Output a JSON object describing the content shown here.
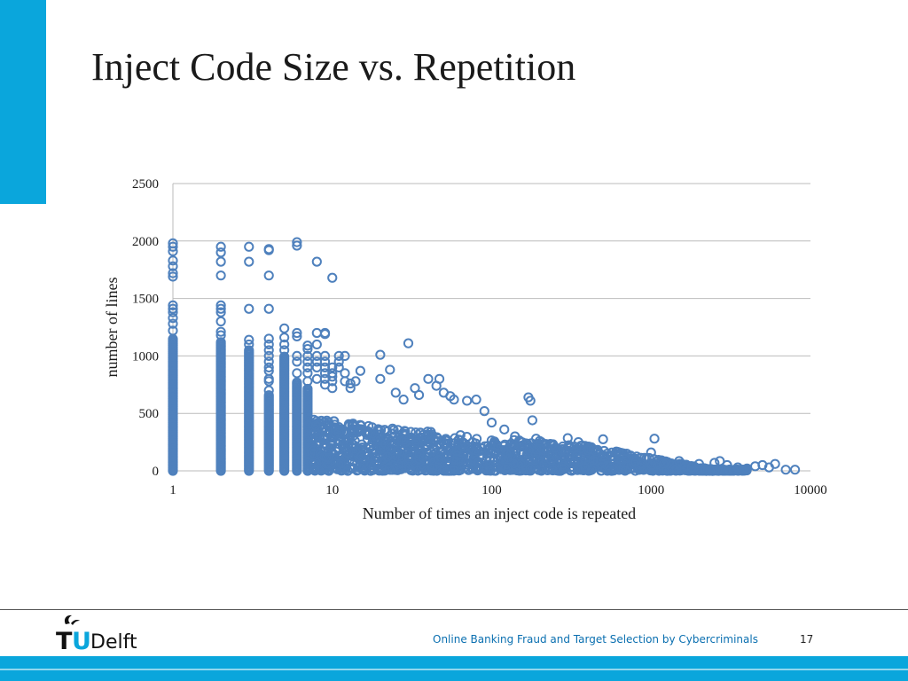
{
  "slide": {
    "title": "Inject Code Size vs. Repetition",
    "page_number": "17",
    "footer_caption": "Online Banking Fraud and Target Selection by Cybercriminals",
    "logo_tu": "TU",
    "logo_delft": "Delft"
  },
  "colors": {
    "accent": "#0aa6dc",
    "marker": "#4f81bd",
    "caption": "#0a6fb0",
    "grid": "#bbbbbb"
  },
  "chart_data": {
    "type": "scatter",
    "xlabel": "Number of times an inject code is repeated",
    "ylabel": "number of lines",
    "xscale": "log",
    "xlim": [
      1,
      10000
    ],
    "ylim": [
      0,
      2500
    ],
    "xticks": [
      1,
      10,
      100,
      1000,
      10000
    ],
    "yticks": [
      0,
      500,
      1000,
      1500,
      2000,
      2500
    ],
    "grid": "horizontal",
    "legend": "none",
    "columns": [
      {
        "x": 1,
        "ymax": 1150
      },
      {
        "x": 2,
        "ymax": 1120
      },
      {
        "x": 3,
        "ymax": 1060
      },
      {
        "x": 4,
        "ymax": 660
      },
      {
        "x": 5,
        "ymax": 1000
      },
      {
        "x": 6,
        "ymax": 780
      },
      {
        "x": 7,
        "ymax": 720
      }
    ],
    "points": [
      [
        1,
        1980
      ],
      [
        1,
        1950
      ],
      [
        1,
        1910
      ],
      [
        1,
        1830
      ],
      [
        1,
        1780
      ],
      [
        1,
        1720
      ],
      [
        1,
        1690
      ],
      [
        1,
        1440
      ],
      [
        1,
        1410
      ],
      [
        1,
        1380
      ],
      [
        1,
        1330
      ],
      [
        1,
        1280
      ],
      [
        1,
        1220
      ],
      [
        2,
        1950
      ],
      [
        2,
        1900
      ],
      [
        2,
        1820
      ],
      [
        2,
        1700
      ],
      [
        2,
        1440
      ],
      [
        2,
        1410
      ],
      [
        2,
        1380
      ],
      [
        2,
        1300
      ],
      [
        2,
        1210
      ],
      [
        2,
        1180
      ],
      [
        3,
        1950
      ],
      [
        3,
        1820
      ],
      [
        3,
        1410
      ],
      [
        3,
        1140
      ],
      [
        3,
        1100
      ],
      [
        4,
        1930
      ],
      [
        4,
        1920
      ],
      [
        4,
        1700
      ],
      [
        4,
        1410
      ],
      [
        4,
        1150
      ],
      [
        4,
        1100
      ],
      [
        4,
        1050
      ],
      [
        4,
        1000
      ],
      [
        4,
        950
      ],
      [
        4,
        900
      ],
      [
        4,
        870
      ],
      [
        4,
        800
      ],
      [
        4,
        780
      ],
      [
        4,
        700
      ],
      [
        5,
        1240
      ],
      [
        5,
        1160
      ],
      [
        5,
        1100
      ],
      [
        5,
        1050
      ],
      [
        6,
        1990
      ],
      [
        6,
        1960
      ],
      [
        6,
        1200
      ],
      [
        6,
        1170
      ],
      [
        6,
        1000
      ],
      [
        6,
        950
      ],
      [
        6,
        850
      ],
      [
        7,
        1090
      ],
      [
        7,
        1060
      ],
      [
        7,
        1000
      ],
      [
        7,
        950
      ],
      [
        7,
        900
      ],
      [
        7,
        850
      ],
      [
        7,
        780
      ],
      [
        8,
        1820
      ],
      [
        8,
        1200
      ],
      [
        8,
        1100
      ],
      [
        8,
        1000
      ],
      [
        8,
        950
      ],
      [
        8,
        900
      ],
      [
        8,
        800
      ],
      [
        9,
        1200
      ],
      [
        9,
        1190
      ],
      [
        9,
        1000
      ],
      [
        9,
        950
      ],
      [
        9,
        900
      ],
      [
        9,
        850
      ],
      [
        9,
        800
      ],
      [
        9,
        750
      ],
      [
        10,
        1680
      ],
      [
        10,
        900
      ],
      [
        10,
        850
      ],
      [
        10,
        820
      ],
      [
        10,
        780
      ],
      [
        10,
        720
      ],
      [
        11,
        1000
      ],
      [
        11,
        950
      ],
      [
        11,
        900
      ],
      [
        12,
        1000
      ],
      [
        12,
        850
      ],
      [
        12,
        780
      ],
      [
        13,
        760
      ],
      [
        13,
        720
      ],
      [
        14,
        780
      ],
      [
        15,
        870
      ],
      [
        20,
        1010
      ],
      [
        20,
        800
      ],
      [
        23,
        880
      ],
      [
        25,
        680
      ],
      [
        28,
        620
      ],
      [
        30,
        1110
      ],
      [
        33,
        720
      ],
      [
        35,
        660
      ],
      [
        40,
        800
      ],
      [
        45,
        740
      ],
      [
        47,
        800
      ],
      [
        50,
        680
      ],
      [
        55,
        650
      ],
      [
        58,
        620
      ],
      [
        70,
        610
      ],
      [
        80,
        620
      ],
      [
        90,
        520
      ],
      [
        100,
        420
      ],
      [
        120,
        360
      ],
      [
        140,
        300
      ],
      [
        170,
        640
      ],
      [
        175,
        610
      ],
      [
        180,
        440
      ],
      [
        190,
        280
      ],
      [
        200,
        260
      ],
      [
        220,
        230
      ],
      [
        250,
        200
      ],
      [
        280,
        190
      ],
      [
        300,
        285
      ],
      [
        350,
        250
      ],
      [
        400,
        180
      ],
      [
        450,
        170
      ],
      [
        500,
        275
      ],
      [
        600,
        150
      ],
      [
        700,
        110
      ],
      [
        800,
        80
      ],
      [
        1000,
        160
      ],
      [
        1050,
        280
      ],
      [
        1200,
        60
      ],
      [
        1500,
        85
      ],
      [
        2000,
        60
      ],
      [
        2500,
        70
      ],
      [
        2700,
        85
      ],
      [
        3000,
        50
      ],
      [
        3500,
        30
      ],
      [
        4000,
        20
      ],
      [
        4500,
        40
      ],
      [
        5000,
        50
      ],
      [
        5500,
        30
      ],
      [
        6000,
        60
      ],
      [
        7000,
        10
      ],
      [
        8000,
        10
      ]
    ]
  }
}
